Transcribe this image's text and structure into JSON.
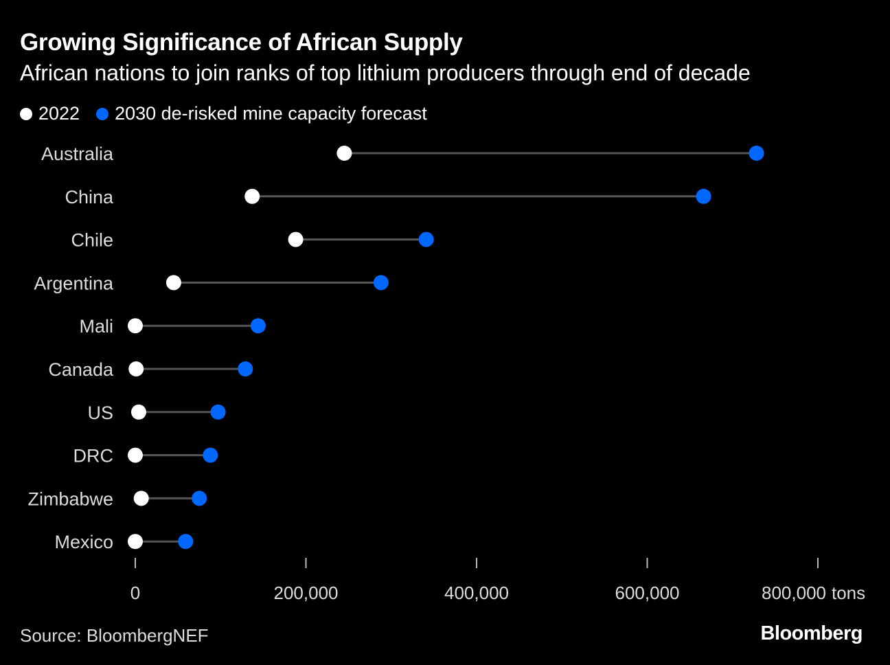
{
  "chart_data": {
    "type": "dumbbell",
    "title": "Growing Significance of African Supply",
    "subtitle": "African nations to join ranks of top lithium producers through end of decade",
    "categories": [
      "Australia",
      "China",
      "Chile",
      "Argentina",
      "Mali",
      "Canada",
      "US",
      "DRC",
      "Zimbabwe",
      "Mexico"
    ],
    "series": [
      {
        "name": "2022",
        "color": "#ffffff",
        "values": [
          245000,
          137000,
          188000,
          45000,
          0,
          1000,
          4000,
          0,
          7000,
          0
        ]
      },
      {
        "name": "2030 de-risked mine capacity forecast",
        "color": "#0068ff",
        "values": [
          728000,
          666000,
          341000,
          288000,
          144000,
          129000,
          97000,
          88000,
          75000,
          59000
        ]
      }
    ],
    "xlim": [
      0,
      800000
    ],
    "xticks": [
      0,
      200000,
      400000,
      600000,
      800000
    ],
    "xtick_labels": [
      "0",
      "200,000",
      "400,000",
      "600,000",
      "800,000"
    ],
    "xunit": "tons",
    "connector_color": "#555555",
    "grid": false,
    "legend_placement": "top-left"
  },
  "footer": {
    "source": "Source: BloombergNEF",
    "logo": "Bloomberg"
  }
}
